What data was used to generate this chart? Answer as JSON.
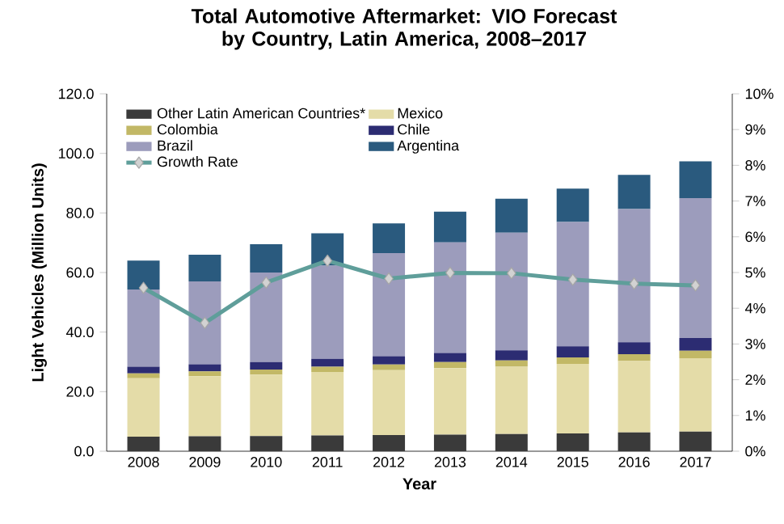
{
  "chart_data": {
    "type": "bar",
    "stacked": true,
    "title": "Total Automotive Aftermarket: VIO Forecast by Country, Latin America, 2008–2017",
    "xlabel": "Year",
    "ylabel": "Light Vehicles (Million Units)",
    "categories": [
      "2008",
      "2009",
      "2010",
      "2011",
      "2012",
      "2013",
      "2014",
      "2015",
      "2016",
      "2017"
    ],
    "series": [
      {
        "name": "Other Latin American Countries*",
        "color": "#3a3a3a",
        "values": [
          4.9,
          5.0,
          5.1,
          5.3,
          5.4,
          5.6,
          5.8,
          6.0,
          6.3,
          6.6
        ]
      },
      {
        "name": "Mexico",
        "color": "#e4dca8",
        "values": [
          19.6,
          20.2,
          20.6,
          21.3,
          21.8,
          22.3,
          22.6,
          23.3,
          24.0,
          24.6
        ]
      },
      {
        "name": "Colombia",
        "color": "#c2b866",
        "values": [
          1.6,
          1.6,
          1.7,
          1.8,
          1.9,
          2.0,
          2.1,
          2.2,
          2.3,
          2.5
        ]
      },
      {
        "name": "Chile",
        "color": "#2c2c72",
        "values": [
          2.3,
          2.4,
          2.5,
          2.6,
          2.8,
          3.1,
          3.4,
          3.7,
          4.0,
          4.3
        ]
      },
      {
        "name": "Brazil",
        "color": "#9c9cbc",
        "values": [
          25.9,
          27.8,
          30.1,
          31.3,
          34.6,
          37.1,
          39.5,
          41.8,
          44.7,
          47.0
        ]
      },
      {
        "name": "Argentina",
        "color": "#2a5a7e",
        "values": [
          9.7,
          9.0,
          9.5,
          10.9,
          10.0,
          10.3,
          11.4,
          11.2,
          11.5,
          12.3
        ]
      },
      {
        "name": "Growth Rate",
        "type": "line",
        "axis": "y2",
        "marker": "diamond",
        "color": "#5f9e9a",
        "values": [
          4.57,
          3.59,
          4.72,
          5.33,
          4.83,
          4.99,
          4.98,
          4.8,
          4.69,
          4.64
        ]
      }
    ],
    "ylim": [
      0,
      120
    ],
    "yticks": [
      {
        "value": 0,
        "label": "0.0"
      },
      {
        "value": 20,
        "label": "20.0"
      },
      {
        "value": 40,
        "label": "40.0"
      },
      {
        "value": 60,
        "label": "60.0"
      },
      {
        "value": 80,
        "label": "80.0"
      },
      {
        "value": 100,
        "label": "100.0"
      },
      {
        "value": 120,
        "label": "120.0"
      }
    ],
    "y2lim": [
      0,
      10
    ],
    "y2ticks": [
      {
        "value": 0,
        "label": "0%"
      },
      {
        "value": 1,
        "label": "1%"
      },
      {
        "value": 2,
        "label": "2%"
      },
      {
        "value": 3,
        "label": "3%"
      },
      {
        "value": 4,
        "label": "4%"
      },
      {
        "value": 5,
        "label": "5%"
      },
      {
        "value": 6,
        "label": "6%"
      },
      {
        "value": 7,
        "label": "7%"
      },
      {
        "value": 8,
        "label": "8%"
      },
      {
        "value": 9,
        "label": "9%"
      },
      {
        "value": 10,
        "label": "10%"
      }
    ],
    "legend": "top left",
    "grid": false
  }
}
